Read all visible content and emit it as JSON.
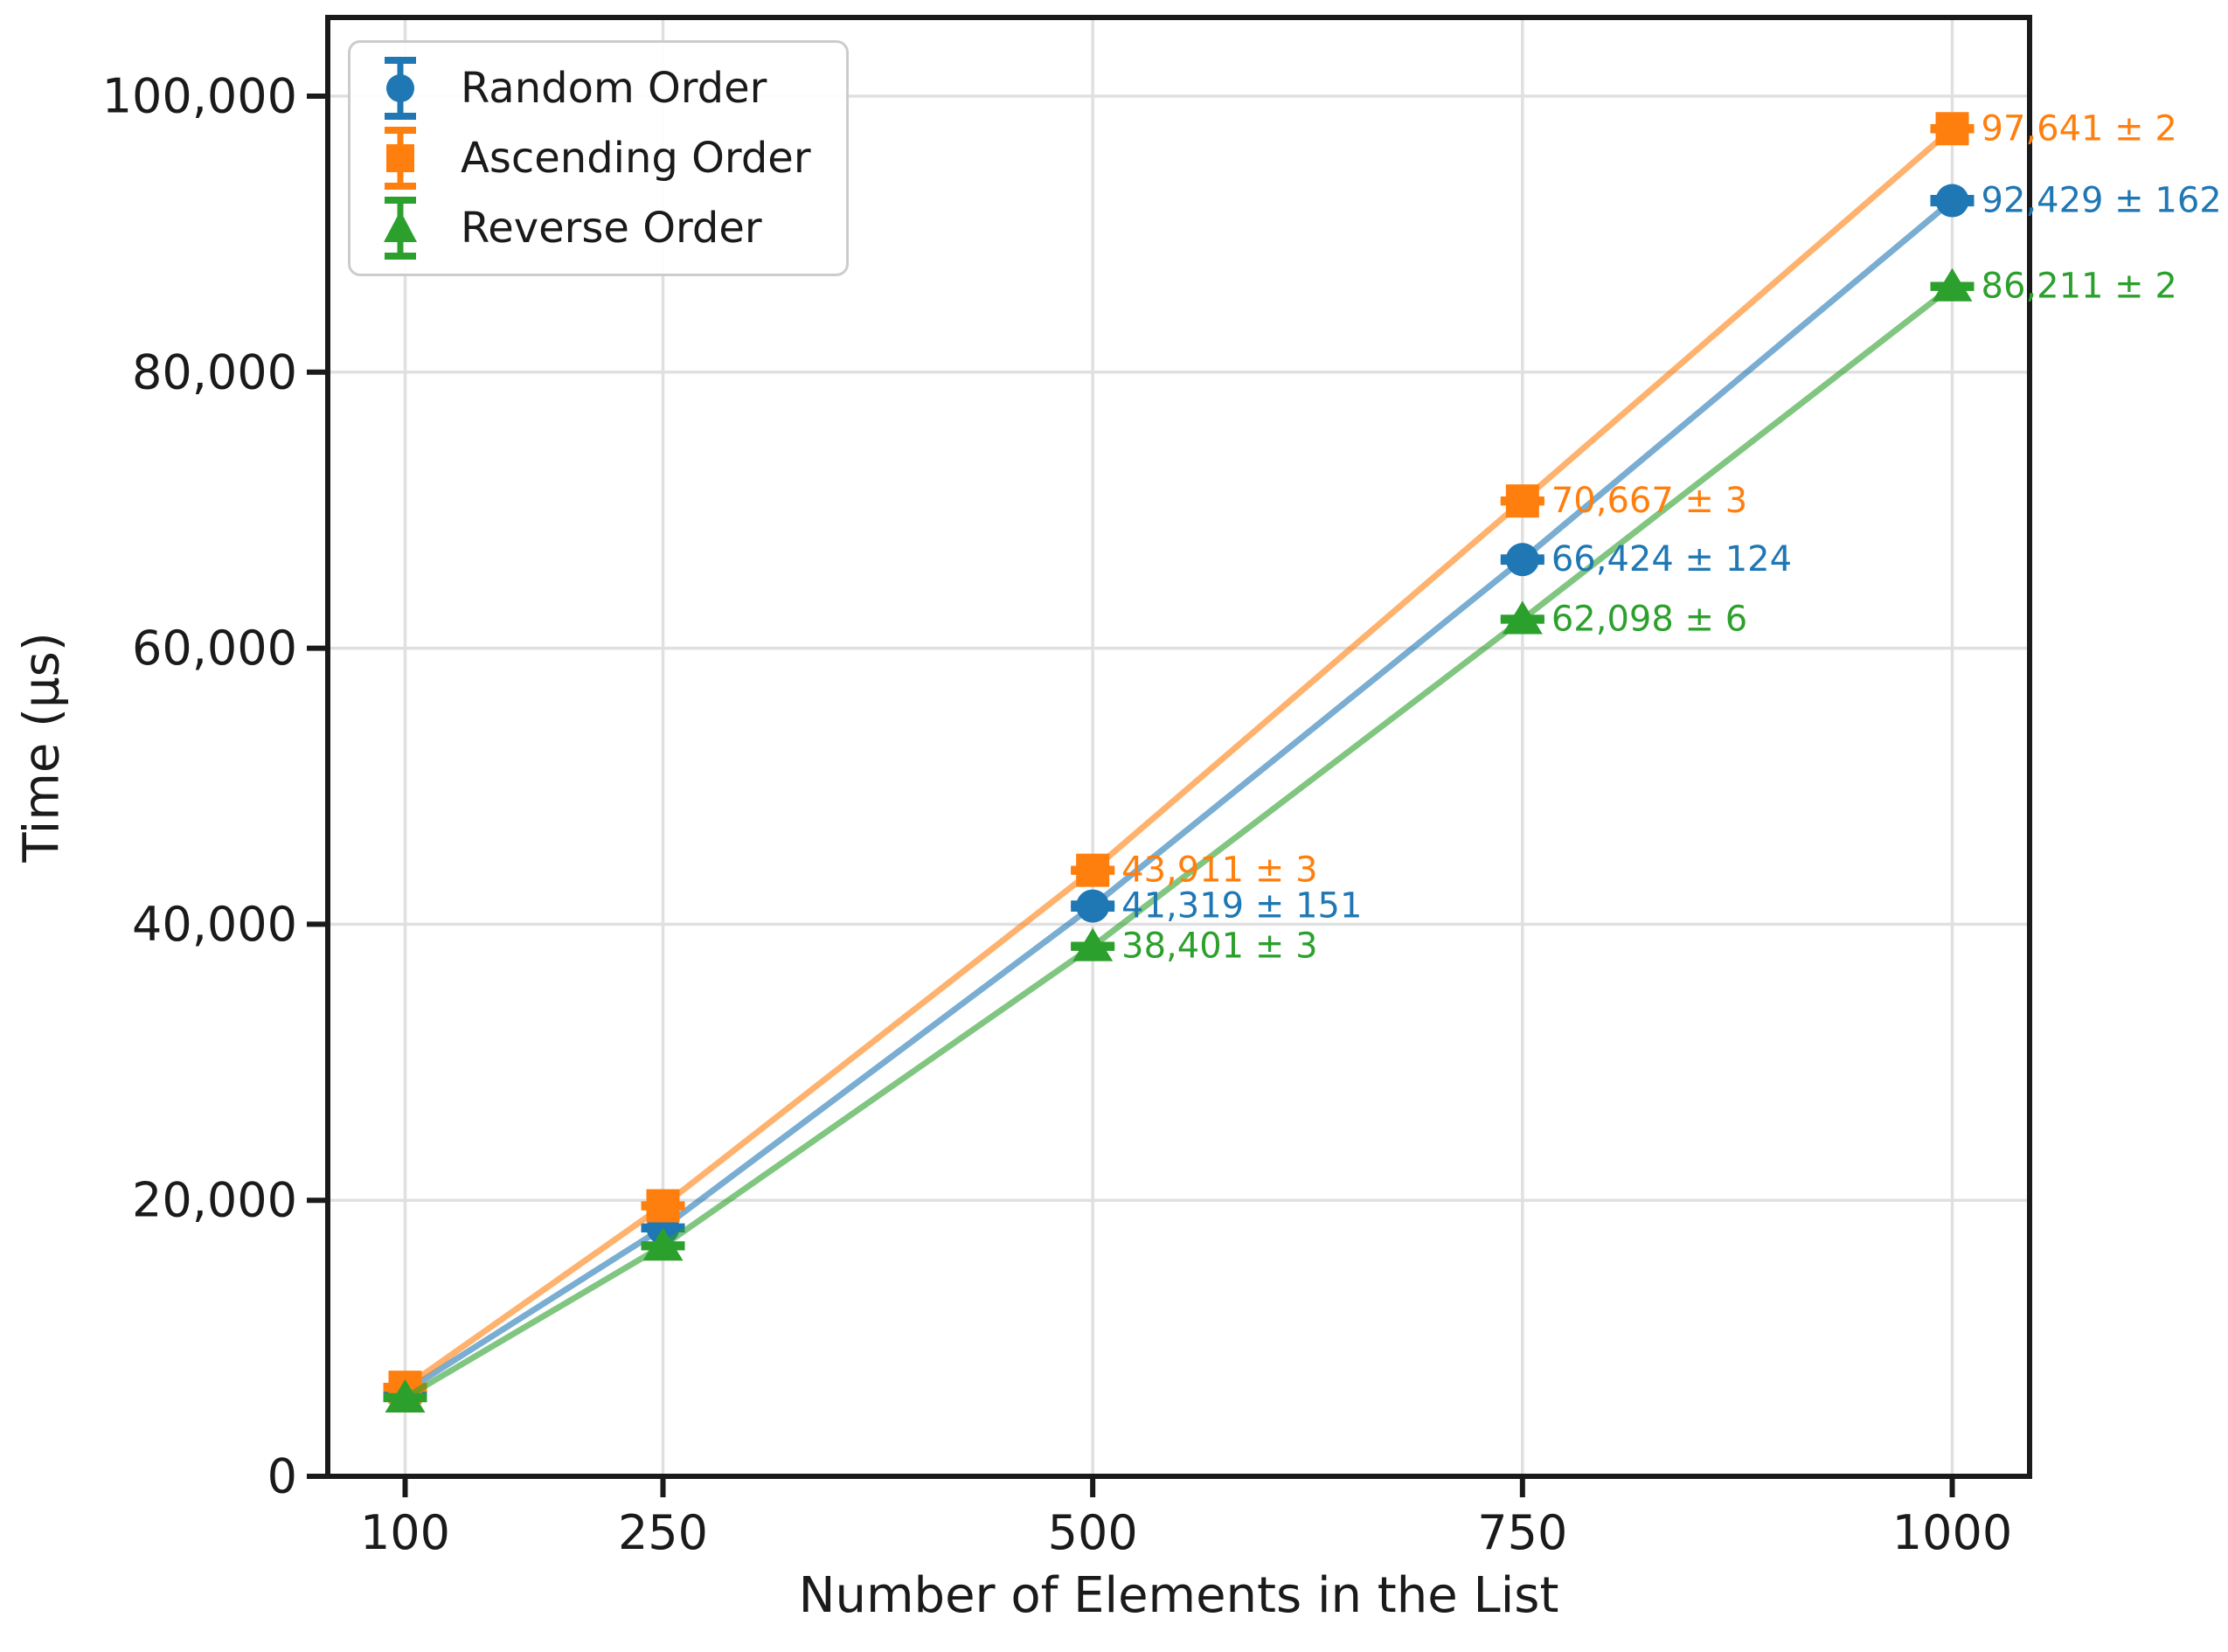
{
  "figure": {
    "background": "#ffffff"
  },
  "styles": {
    "grid_color": "#e0e0e0",
    "axis_color": "#1a1a1a",
    "text_color": "#1a1a1a",
    "legend_border_color": "#cccccc",
    "line_opacity": 0.6,
    "accent_random": "#1f77b4",
    "accent_ascending": "#ff7f0e",
    "accent_reverse": "#2ca02c"
  },
  "chart_data": {
    "type": "line",
    "title": "",
    "xlabel": "Number of Elements in the List",
    "ylabel": "Time (μs)",
    "grid": true,
    "legend_position": "upper left",
    "xlim": [
      55,
      1045
    ],
    "ylim": [
      0,
      105700
    ],
    "x": [
      100,
      250,
      500,
      750,
      1000
    ],
    "x_tick_labels": [
      "100",
      "250",
      "500",
      "750",
      "1000"
    ],
    "y_ticks": [
      0,
      20000,
      40000,
      60000,
      80000,
      100000
    ],
    "y_tick_labels": [
      "0",
      "20,000",
      "40,000",
      "60,000",
      "80,000",
      "100,000"
    ],
    "series": [
      {
        "key": "random",
        "name": "Random Order",
        "marker": "circle",
        "color": "#1f77b4",
        "values": [
          6150,
          18000,
          41319,
          66424,
          92429
        ],
        "errors": [
          null,
          null,
          151,
          124,
          162
        ],
        "point_labels": [
          null,
          null,
          "41,319 ± 151",
          "66,424 ± 124",
          "92,429 ± 162"
        ]
      },
      {
        "key": "ascending",
        "name": "Ascending Order",
        "marker": "square",
        "color": "#ff7f0e",
        "values": [
          6450,
          19600,
          43911,
          70667,
          97641
        ],
        "errors": [
          null,
          null,
          3,
          3,
          2
        ],
        "point_labels": [
          null,
          null,
          "43,911 ± 3",
          "70,667 ± 3",
          "97,641 ± 2"
        ]
      },
      {
        "key": "reverse",
        "name": "Reverse Order",
        "marker": "triangle",
        "color": "#2ca02c",
        "values": [
          5700,
          16700,
          38401,
          62098,
          86211
        ],
        "errors": [
          null,
          null,
          3,
          6,
          2
        ],
        "point_labels": [
          null,
          null,
          "38,401 ± 3",
          "62,098 ± 6",
          "86,211 ± 2"
        ]
      }
    ]
  }
}
